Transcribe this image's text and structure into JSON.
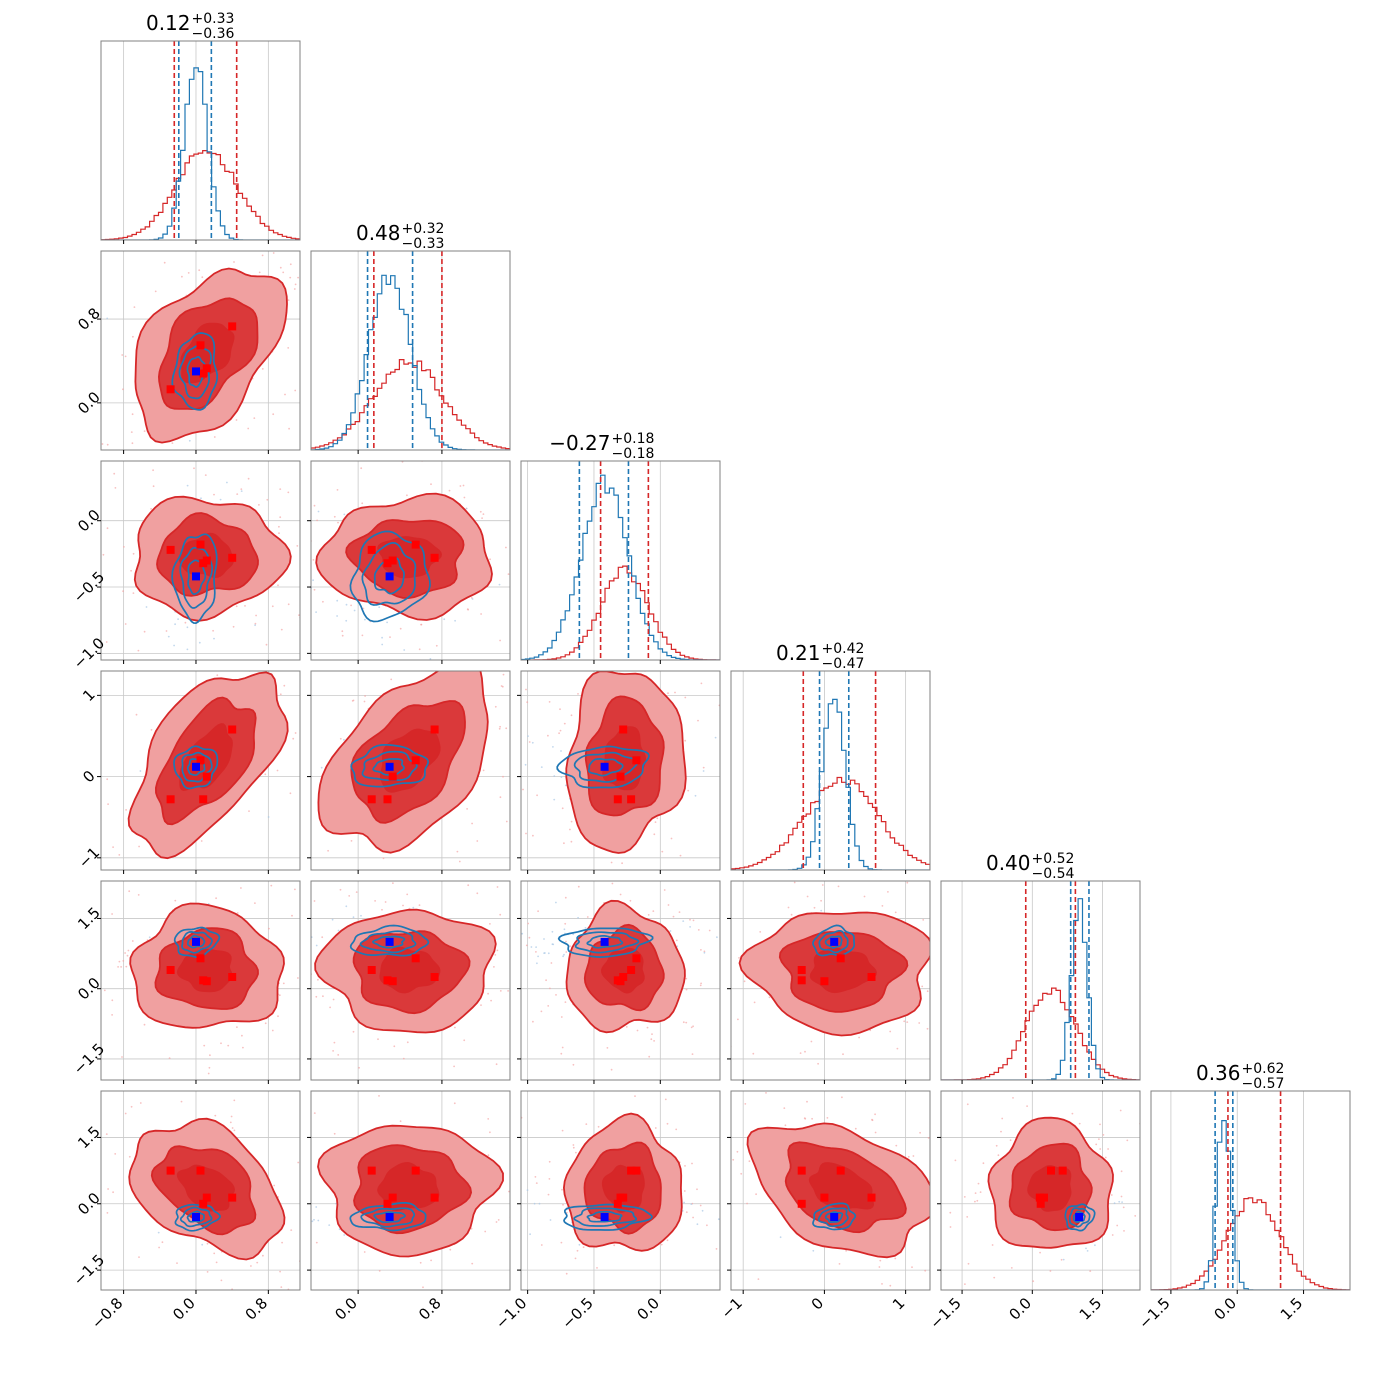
{
  "chart_data": {
    "type": "corner",
    "n_params": 6,
    "grid": true,
    "colors": {
      "red_series": "#d62728",
      "red_light": "#f0a0a0",
      "red_mid": "#e35a5a",
      "blue_series": "#1f77b4",
      "red_marker": "#ff0000",
      "blue_marker": "#0000ff"
    },
    "diagonal_titles": [
      {
        "value": "0.12",
        "plus": "+0.33",
        "minus": "−0.36"
      },
      {
        "value": "0.48",
        "plus": "+0.32",
        "minus": "−0.33"
      },
      {
        "value": "−0.27",
        "plus": "+0.18",
        "minus": "−0.18"
      },
      {
        "value": "0.21",
        "plus": "+0.42",
        "minus": "−0.47"
      },
      {
        "value": "0.40",
        "plus": "+0.52",
        "minus": "−0.54"
      },
      {
        "value": "0.36",
        "plus": "+0.62",
        "minus": "−0.57"
      }
    ],
    "params": [
      {
        "lim": [
          -1.05,
          1.15
        ],
        "ticks": [
          -0.8,
          0.0,
          0.8
        ],
        "tick_labels": [
          "−0.8",
          "0.0",
          "0.8"
        ]
      },
      {
        "lim": [
          -0.45,
          1.45
        ],
        "ticks": [
          0.0,
          0.8
        ],
        "tick_labels": [
          "0.0",
          "0.8"
        ]
      },
      {
        "lim": [
          -1.05,
          0.45
        ],
        "ticks": [
          -1.0,
          -0.5,
          0.0
        ],
        "tick_labels": [
          "−1.0",
          "−0.5",
          "0.0"
        ]
      },
      {
        "lim": [
          -1.15,
          1.3
        ],
        "ticks": [
          -1,
          0,
          1
        ],
        "tick_labels": [
          "−1",
          "0",
          "1"
        ]
      },
      {
        "lim": [
          -1.95,
          2.3
        ],
        "ticks": [
          -1.5,
          0.0,
          1.5
        ],
        "tick_labels": [
          "−1.5",
          "0.0",
          "1.5"
        ]
      },
      {
        "lim": [
          -1.95,
          2.55
        ],
        "ticks": [
          -1.5,
          0.0,
          1.5
        ],
        "tick_labels": [
          "−1.5",
          "0.0",
          "1.5"
        ]
      }
    ],
    "red_series": {
      "mean": [
        0.12,
        0.48,
        -0.27,
        0.21,
        0.4,
        0.36
      ],
      "sigma": [
        0.34,
        0.33,
        0.18,
        0.45,
        0.53,
        0.6
      ],
      "quantile_lines": [
        [
          -0.24,
          0.45
        ],
        [
          0.15,
          0.8
        ],
        [
          -0.45,
          -0.09
        ],
        [
          -0.26,
          0.63
        ],
        [
          -0.14,
          0.92
        ],
        [
          -0.21,
          0.98
        ]
      ]
    },
    "blue_series": {
      "mean": [
        0.0,
        0.3,
        -0.42,
        0.12,
        1.0,
        -0.3
      ],
      "sigma": [
        0.13,
        0.2,
        0.18,
        0.14,
        0.17,
        0.16
      ],
      "quantile_lines": [
        [
          -0.19,
          0.17
        ],
        [
          0.09,
          0.52
        ],
        [
          -0.61,
          -0.24
        ],
        [
          -0.06,
          0.3
        ],
        [
          0.82,
          1.21
        ],
        [
          -0.5,
          -0.1
        ]
      ]
    },
    "red_markers": [
      [
        -0.28,
        0.13,
        -0.22,
        -0.28,
        0.4,
        0.75
      ],
      [
        0.05,
        0.55,
        -0.18,
        0.2,
        0.65,
        0.75
      ],
      [
        0.12,
        0.33,
        -0.3,
        0.0,
        0.16,
        0.14
      ],
      [
        0.4,
        0.73,
        -0.28,
        0.58,
        0.25,
        0.14
      ],
      [
        0.08,
        0.28,
        -0.32,
        -0.28,
        0.18,
        0.0
      ]
    ],
    "blue_marker": [
      0.0,
      0.3,
      -0.42,
      0.12,
      1.0,
      -0.3
    ]
  }
}
